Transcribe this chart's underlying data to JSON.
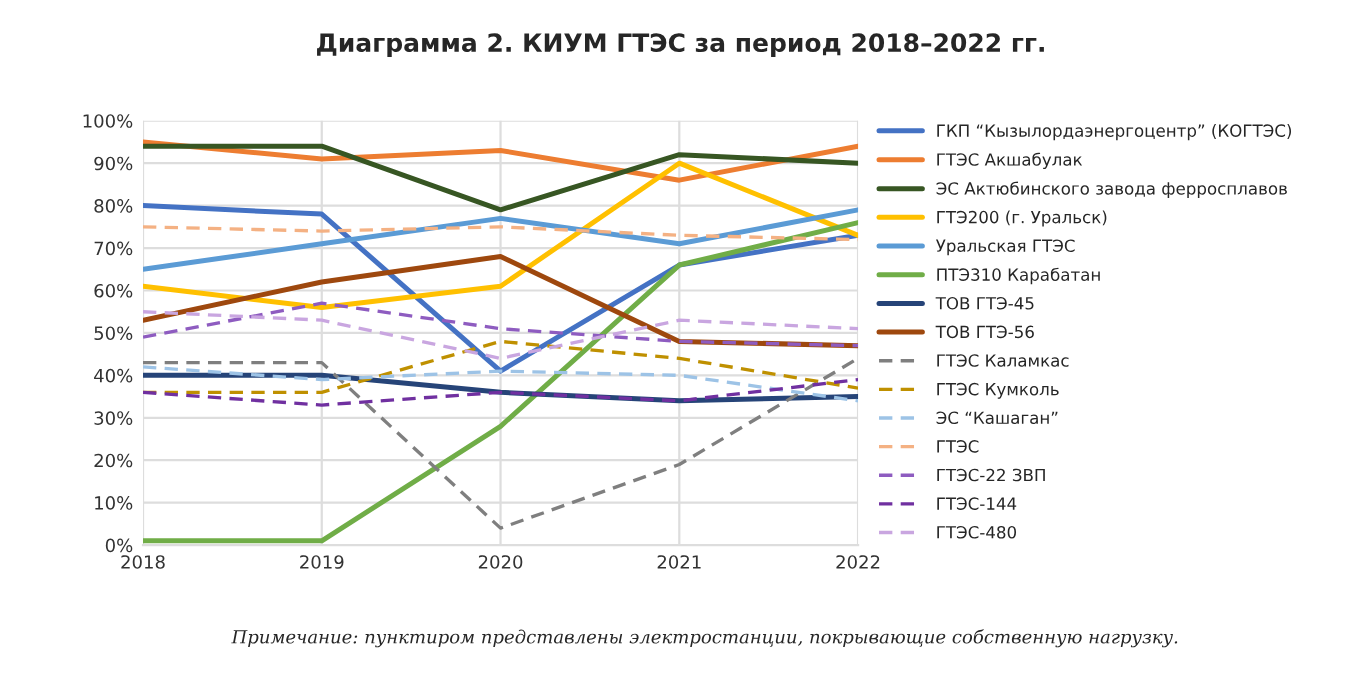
{
  "chart_data": {
    "type": "line",
    "title": "Диаграмма 2. КИУМ ГТЭС за период 2018–2022 гг.",
    "categories": [
      "2018",
      "2019",
      "2020",
      "2021",
      "2022"
    ],
    "ylim": [
      0,
      100
    ],
    "yticks": [
      {
        "value": 0,
        "label": "0%"
      },
      {
        "value": 10,
        "label": "10%"
      },
      {
        "value": 20,
        "label": "20%"
      },
      {
        "value": 30,
        "label": "30%"
      },
      {
        "value": 40,
        "label": "40%"
      },
      {
        "value": 50,
        "label": "50%"
      },
      {
        "value": 60,
        "label": "60%"
      },
      {
        "value": 70,
        "label": "70%"
      },
      {
        "value": 80,
        "label": "80%"
      },
      {
        "value": 90,
        "label": "90%"
      },
      {
        "value": 100,
        "label": "100%"
      }
    ],
    "grid": true,
    "legend": "right",
    "marker": "none",
    "series": [
      {
        "name": "ГКП “Кызылордаэнергоцентр” (КОГТЭС)",
        "color": "#4472c4",
        "line_style": "solid",
        "values": [
          80,
          78,
          41,
          66,
          73
        ]
      },
      {
        "name": "ГТЭС Акшабулак",
        "color": "#ed7d31",
        "line_style": "solid",
        "values": [
          95,
          91,
          93,
          86,
          94
        ]
      },
      {
        "name": "ЭС Актюбинского завода ферросплавов",
        "color": "#375623",
        "line_style": "solid",
        "values": [
          94,
          94,
          79,
          92,
          90
        ]
      },
      {
        "name": "ГТЭ200 (г. Уральск)",
        "color": "#ffc000",
        "line_style": "solid",
        "values": [
          61,
          56,
          61,
          90,
          73
        ]
      },
      {
        "name": "Уральская ГТЭС",
        "color": "#5b9bd5",
        "line_style": "solid",
        "values": [
          65,
          71,
          77,
          71,
          79
        ]
      },
      {
        "name": "ПТЭ310 Карабатан",
        "color": "#70ad47",
        "line_style": "solid",
        "values": [
          1,
          1,
          28,
          66,
          76
        ]
      },
      {
        "name": "ТОВ ГТЭ-45",
        "color": "#264478",
        "line_style": "solid",
        "values": [
          40,
          40,
          36,
          34,
          35
        ]
      },
      {
        "name": "ТОВ ГТЭ-56",
        "color": "#9e480e",
        "line_style": "solid",
        "values": [
          53,
          62,
          68,
          48,
          47
        ]
      },
      {
        "name": "ГТЭС Каламкас",
        "color": "#7f7f7f",
        "line_style": "dashed",
        "values": [
          43,
          43,
          4,
          19,
          44
        ]
      },
      {
        "name": "ГТЭС Кумколь",
        "color": "#bf9000",
        "line_style": "dashed",
        "values": [
          36,
          36,
          48,
          44,
          37
        ]
      },
      {
        "name": "ЭС “Кашаган”",
        "color": "#9dc3e6",
        "line_style": "dashed",
        "values": [
          42,
          39,
          41,
          40,
          34
        ]
      },
      {
        "name": "ГТЭС",
        "color": "#f4b183",
        "line_style": "dashed",
        "values": [
          75,
          74,
          75,
          73,
          72
        ]
      },
      {
        "name": "ГТЭС-22 ЗВП",
        "color": "#8e5cc0",
        "line_style": "dashed",
        "values": [
          49,
          57,
          51,
          48,
          47
        ]
      },
      {
        "name": "ГТЭС-144",
        "color": "#7030a0",
        "line_style": "dashed",
        "values": [
          36,
          33,
          36,
          34,
          39
        ]
      },
      {
        "name": "ГТЭС-480",
        "color": "#c9a6e0",
        "line_style": "dashed",
        "values": [
          55,
          53,
          44,
          53,
          51
        ]
      }
    ],
    "annotations": [
      "Примечание: пунктиром представлены электростанции, покрывающие собственную нагрузку."
    ]
  }
}
